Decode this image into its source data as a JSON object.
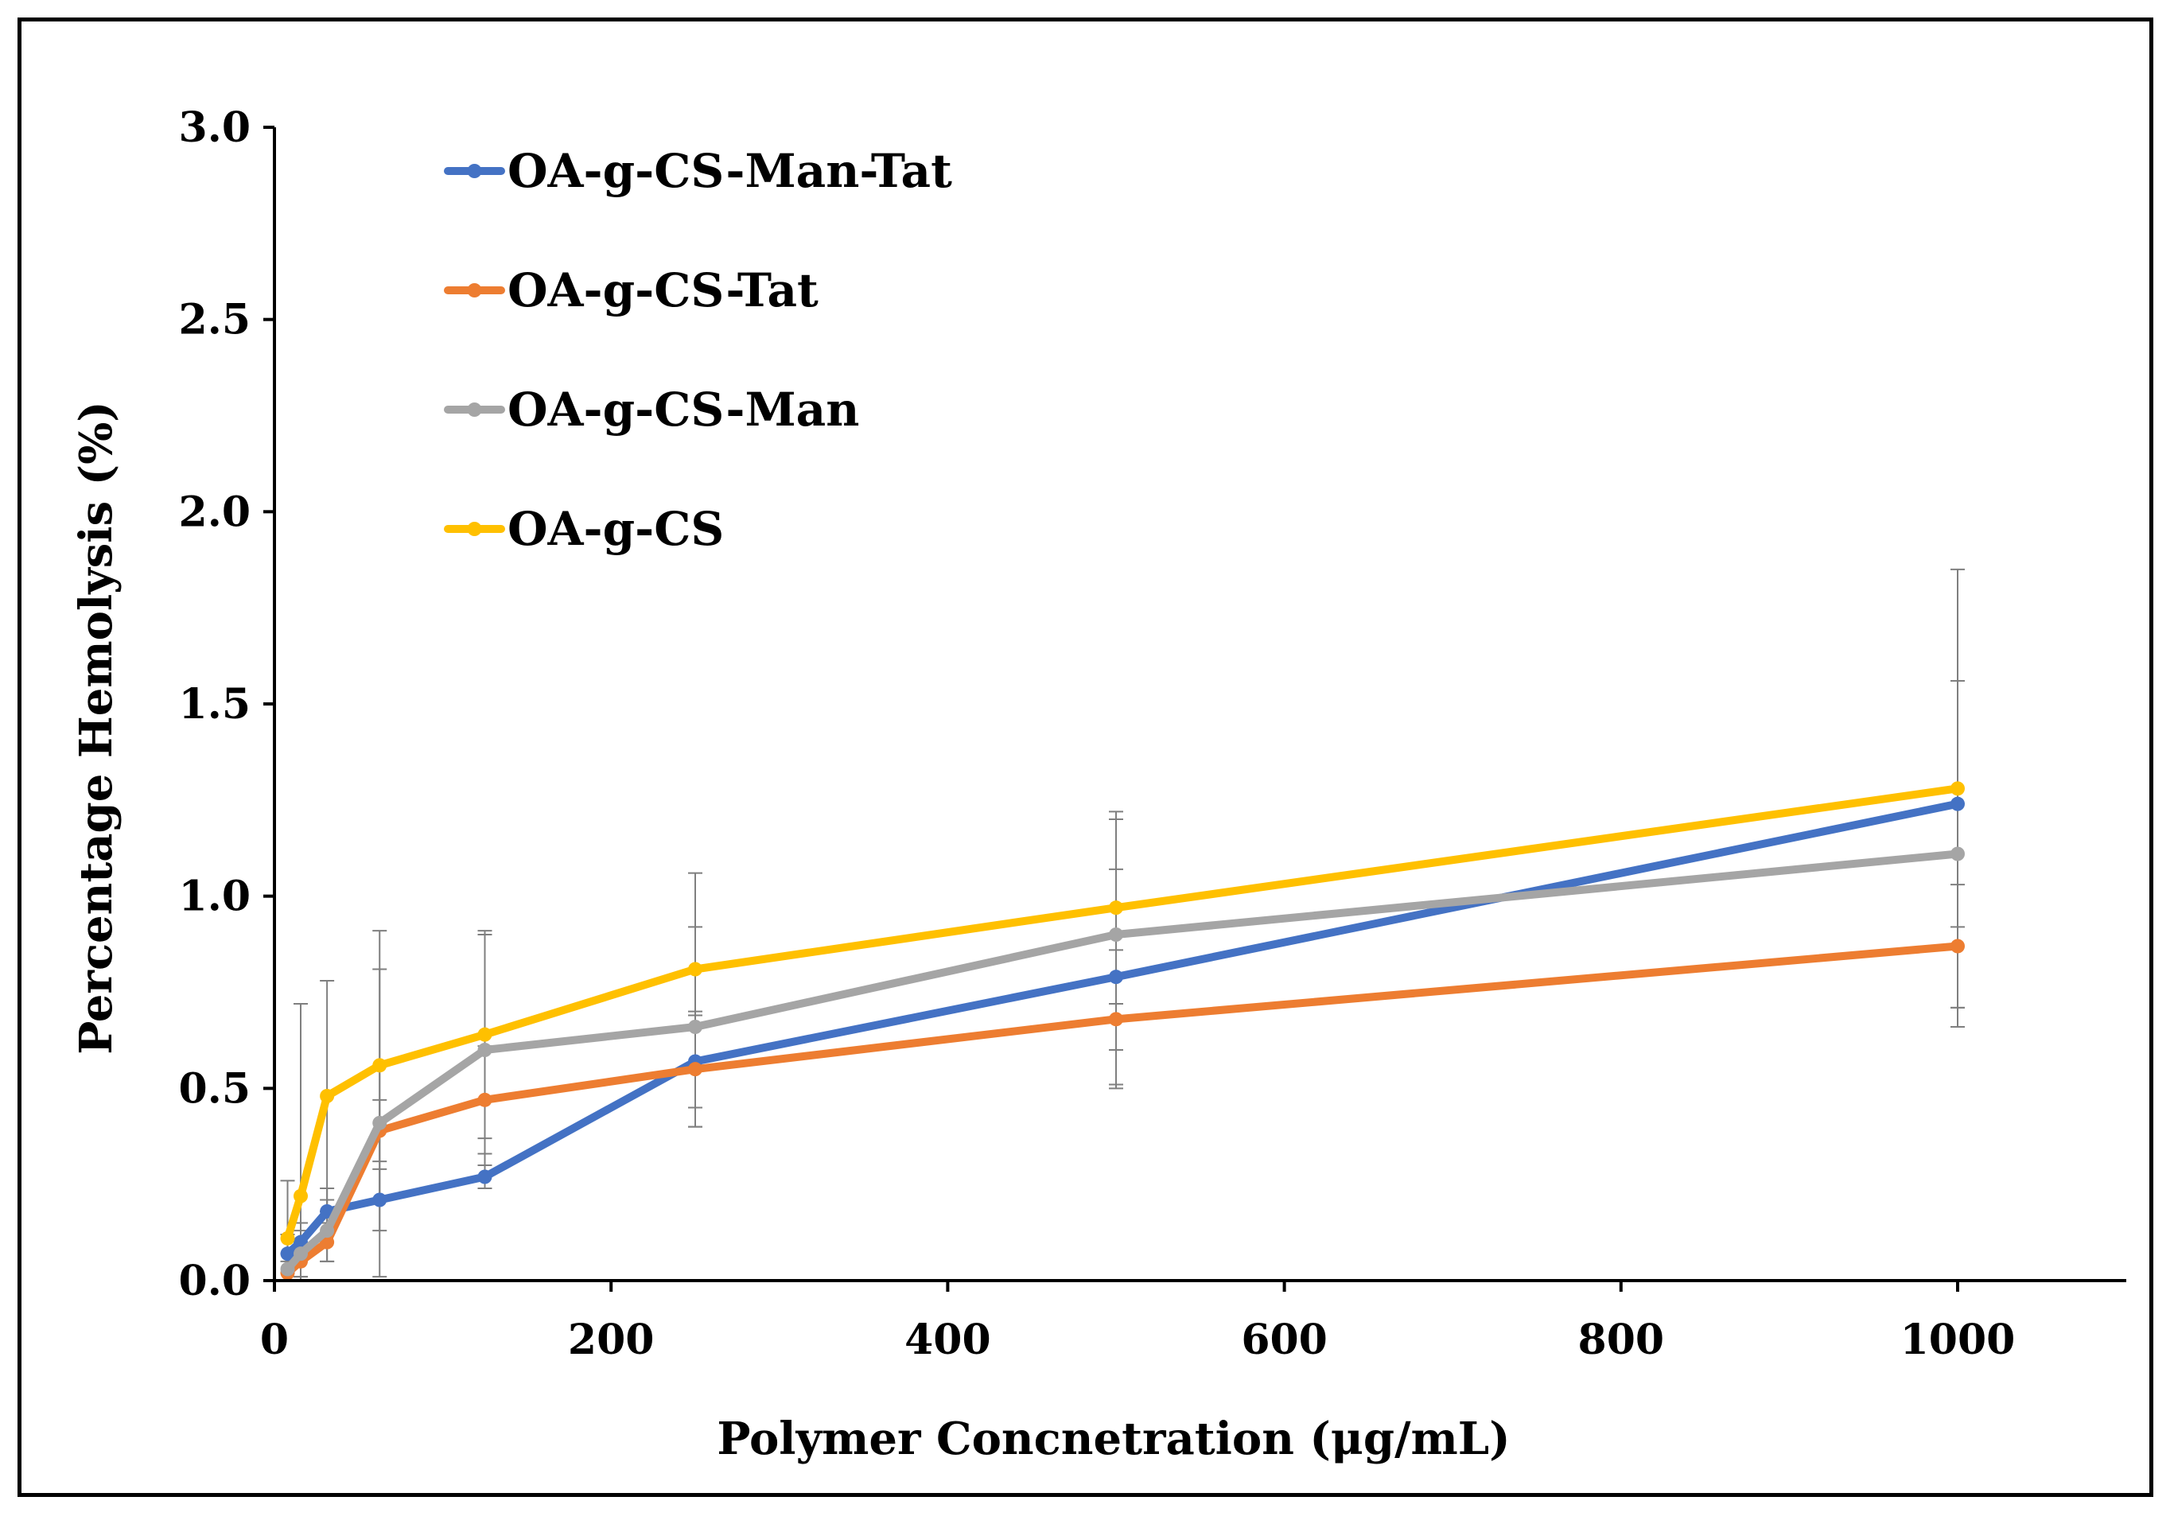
{
  "chart_data": {
    "type": "line",
    "title": "",
    "xlabel": "Polymer Concnetration (μg/mL)",
    "ylabel": "Percentage Hemolysis (%)",
    "xlim": [
      0,
      1100
    ],
    "ylim": [
      0,
      3.0
    ],
    "x_ticks": [
      0,
      200,
      400,
      600,
      800,
      1000
    ],
    "x_tick_labels": [
      "0",
      "200",
      "400",
      "600",
      "800",
      "1000"
    ],
    "y_ticks": [
      0,
      0.5,
      1.0,
      1.5,
      2.0,
      2.5,
      3.0
    ],
    "y_tick_labels": [
      "0.0",
      "0.5",
      "1.0",
      "1.5",
      "2.0",
      "2.5",
      "3.0"
    ],
    "grid": false,
    "legend_position": "top-left",
    "x": [
      7.8,
      15.6,
      31.25,
      62.5,
      125,
      250,
      500,
      1000
    ],
    "series": [
      {
        "name": "OA-g-CS-Man-Tat",
        "color": "#4472C4",
        "values": [
          0.07,
          0.1,
          0.18,
          0.21,
          0.27,
          0.57,
          0.79,
          1.24
        ],
        "errors": [
          0.05,
          0.05,
          0.06,
          0.08,
          0.03,
          0.12,
          0.28,
          0.32
        ]
      },
      {
        "name": "OA-g-CS-Tat",
        "color": "#ED7D31",
        "values": [
          0.02,
          0.05,
          0.1,
          0.39,
          0.47,
          0.55,
          0.68,
          0.87
        ],
        "errors": [
          0.03,
          0.04,
          0.05,
          0.08,
          0.14,
          0.15,
          0.18,
          0.16
        ]
      },
      {
        "name": "OA-g-CS-Man",
        "color": "#A5A5A5",
        "values": [
          0.03,
          0.07,
          0.13,
          0.41,
          0.6,
          0.66,
          0.9,
          1.11
        ],
        "errors": [
          0.04,
          0.06,
          0.08,
          0.4,
          0.3,
          0.26,
          0.3,
          0.45
        ]
      },
      {
        "name": "OA-g-CS",
        "color": "#FFC000",
        "values": [
          0.11,
          0.22,
          0.48,
          0.56,
          0.64,
          0.81,
          0.97,
          1.28
        ],
        "errors": [
          0.15,
          0.5,
          0.3,
          0.35,
          0.27,
          0.25,
          0.25,
          0.57
        ]
      }
    ]
  }
}
